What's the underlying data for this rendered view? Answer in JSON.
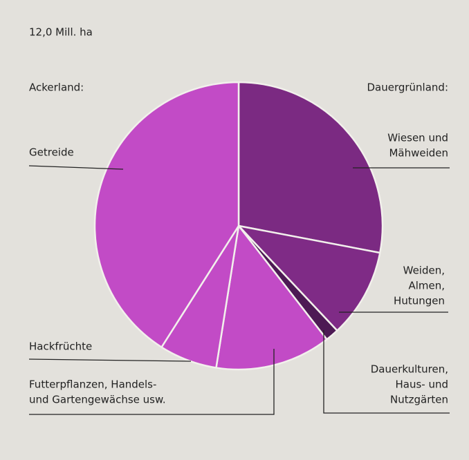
{
  "chart_data": {
    "type": "pie",
    "title": "12,0 Mill. ha",
    "groups": [
      "Dauergrünland:",
      "Ackerland:"
    ],
    "categories": [
      [
        "Wiesen und",
        "Mähweiden"
      ],
      [
        "Weiden,",
        "Almen,",
        "Hutungen"
      ],
      [
        "Dauerkulturen,",
        "Haus- und",
        "Nutzgärten"
      ],
      [
        "Futterpflanzen, Handels-",
        "und Gartengewächse usw."
      ],
      [
        "Hackfrüchte"
      ],
      [
        "Getreide"
      ]
    ],
    "values": [
      28,
      10,
      1.5,
      13,
      6.5,
      41
    ],
    "colors": [
      "#7b2a82",
      "#7f2b86",
      "#4d1a54",
      "#c24bc6",
      "#c24bc6",
      "#c24bc6"
    ]
  }
}
